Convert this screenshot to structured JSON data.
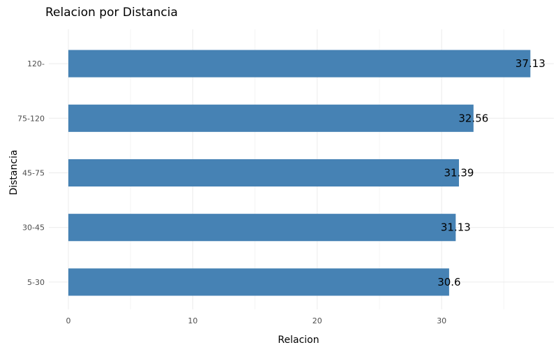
{
  "chart_data": {
    "type": "bar",
    "orientation": "horizontal",
    "title": "Relacion por Distancia",
    "xlabel": "Relacion",
    "ylabel": "Distancia",
    "categories": [
      "5-30",
      "30-45",
      "45-75",
      "75-120",
      "120-"
    ],
    "values": [
      30.6,
      31.13,
      31.39,
      32.56,
      37.13
    ],
    "data_labels": [
      "30.6",
      "31.13",
      "31.39",
      "32.56",
      "37.13"
    ],
    "xlim": [
      0,
      38.5
    ],
    "xticks": [
      0,
      10,
      20,
      30
    ],
    "xtick_labels": [
      "0",
      "10",
      "20",
      "30"
    ],
    "grid": true,
    "legend": "none",
    "bar_color": "#4682B4"
  }
}
